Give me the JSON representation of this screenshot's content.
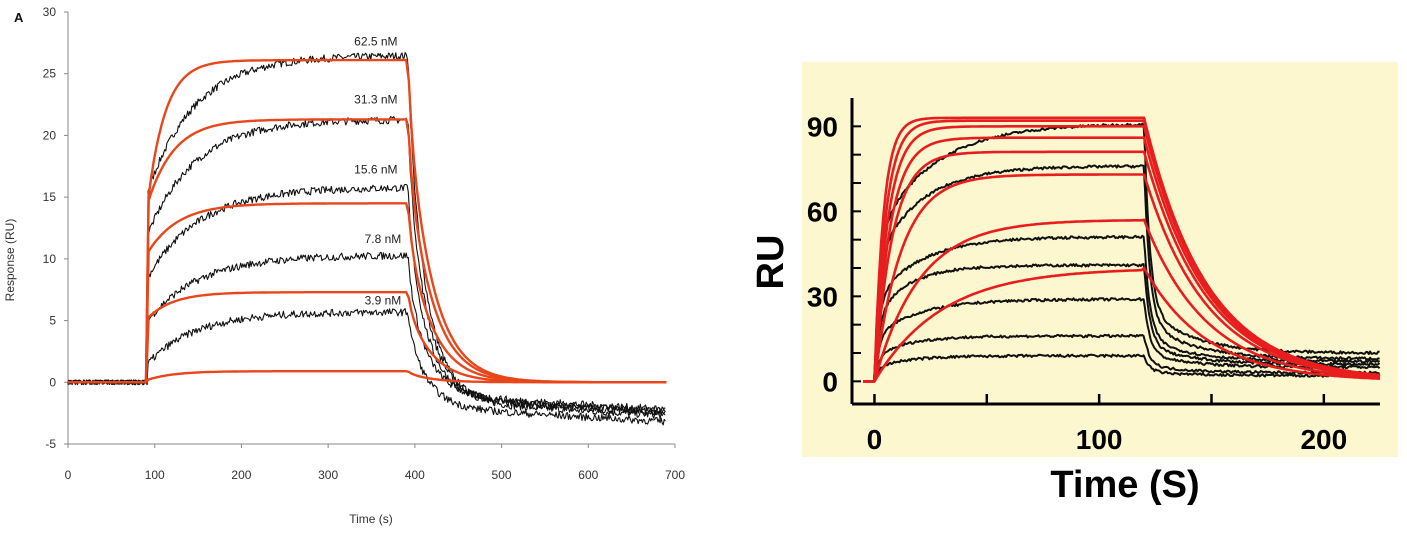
{
  "colors": {
    "data": "#111111",
    "fit_left": "#e8461b",
    "fit_right": "#e81e1e",
    "right_bg": "#fcf7cf"
  },
  "chart_data": [
    {
      "type": "line",
      "panel_label": "A",
      "xlabel": "Time (s)",
      "ylabel": "Response (RU)",
      "xlim": [
        0,
        700
      ],
      "ylim": [
        -5,
        30
      ],
      "x_ticks": [
        "0",
        "100",
        "200",
        "300",
        "400",
        "500",
        "600",
        "700"
      ],
      "y_ticks": [
        "-5",
        "0",
        "5",
        "10",
        "15",
        "20",
        "25",
        "30"
      ],
      "grid": false,
      "association_start": 92,
      "dissociation_start": 392,
      "end": 690,
      "concentration_labels": [
        {
          "text": "62.5 nM",
          "x": 330,
          "y": 27.3
        },
        {
          "text": "31.3 nM",
          "x": 330,
          "y": 22.6
        },
        {
          "text": "15.6 nM",
          "x": 330,
          "y": 16.9
        },
        {
          "text": "7.8 nM",
          "x": 342,
          "y": 11.3
        },
        {
          "text": "3.9 nM",
          "x": 342,
          "y": 6.3
        }
      ],
      "series": [
        {
          "kind": "data",
          "values": {
            "jump": 15.5,
            "plateau": 26.5,
            "tau": 55,
            "dissoc_end": -1.5
          }
        },
        {
          "kind": "data",
          "values": {
            "jump": 12,
            "plateau": 21.3,
            "tau": 55,
            "dissoc_end": -1.3
          }
        },
        {
          "kind": "data",
          "values": {
            "jump": 8.5,
            "plateau": 15.8,
            "tau": 60,
            "dissoc_end": -1.2
          }
        },
        {
          "kind": "data",
          "values": {
            "jump": 5,
            "plateau": 10.3,
            "tau": 60,
            "dissoc_end": -1.0
          }
        },
        {
          "kind": "data",
          "values": {
            "jump": 1.5,
            "plateau": 5.7,
            "tau": 55,
            "dissoc_end": -2.0
          }
        },
        {
          "kind": "fit",
          "values": {
            "jump": 14.5,
            "plateau": 26.1,
            "tau": 20,
            "dissoc_end": 0
          }
        },
        {
          "kind": "fit",
          "values": {
            "jump": 14.5,
            "plateau": 21.3,
            "tau": 30,
            "dissoc_end": 0
          }
        },
        {
          "kind": "fit",
          "values": {
            "jump": 10.5,
            "plateau": 14.5,
            "tau": 35,
            "dissoc_end": 0
          }
        },
        {
          "kind": "fit",
          "values": {
            "jump": 5.2,
            "plateau": 7.3,
            "tau": 30,
            "dissoc_end": 0
          }
        },
        {
          "kind": "fit",
          "values": {
            "jump": 0.2,
            "plateau": 0.9,
            "tau": 30,
            "dissoc_end": 0
          }
        }
      ]
    },
    {
      "type": "line",
      "xlabel": "Time (S)",
      "ylabel": "RU",
      "xlim": [
        -10,
        225
      ],
      "ylim": [
        -8,
        100
      ],
      "x_ticks": [
        "0",
        "100",
        "200"
      ],
      "y_ticks": [
        "0",
        "30",
        "60",
        "90"
      ],
      "grid": false,
      "association_start": 0,
      "dissociation_start": 120,
      "end": 225,
      "series": [
        {
          "kind": "data",
          "values": {
            "plateau": 91,
            "tau": 25,
            "dissoc_residual": 10
          }
        },
        {
          "kind": "data",
          "values": {
            "plateau": 76,
            "tau": 20,
            "dissoc_residual": 8
          }
        },
        {
          "kind": "data",
          "values": {
            "plateau": 51,
            "tau": 20,
            "dissoc_residual": 7
          }
        },
        {
          "kind": "data",
          "values": {
            "plateau": 41,
            "tau": 15,
            "dissoc_residual": 6
          }
        },
        {
          "kind": "data",
          "values": {
            "plateau": 29,
            "tau": 20,
            "dissoc_residual": 5
          }
        },
        {
          "kind": "data",
          "values": {
            "plateau": 16,
            "tau": 15,
            "dissoc_residual": 3
          }
        },
        {
          "kind": "data",
          "values": {
            "plateau": 9,
            "tau": 15,
            "dissoc_residual": 2
          }
        },
        {
          "kind": "fit",
          "values": {
            "plateau": 93,
            "tau": 4
          }
        },
        {
          "kind": "fit",
          "values": {
            "plateau": 92,
            "tau": 5
          }
        },
        {
          "kind": "fit",
          "values": {
            "plateau": 90,
            "tau": 6
          }
        },
        {
          "kind": "fit",
          "values": {
            "plateau": 86,
            "tau": 7
          }
        },
        {
          "kind": "fit",
          "values": {
            "plateau": 81,
            "tau": 8
          }
        },
        {
          "kind": "fit",
          "values": {
            "plateau": 73,
            "tau": 12
          }
        },
        {
          "kind": "fit",
          "values": {
            "plateau": 57,
            "tau": 20
          }
        },
        {
          "kind": "fit",
          "values": {
            "plateau": 40,
            "tau": 30
          }
        }
      ]
    }
  ]
}
